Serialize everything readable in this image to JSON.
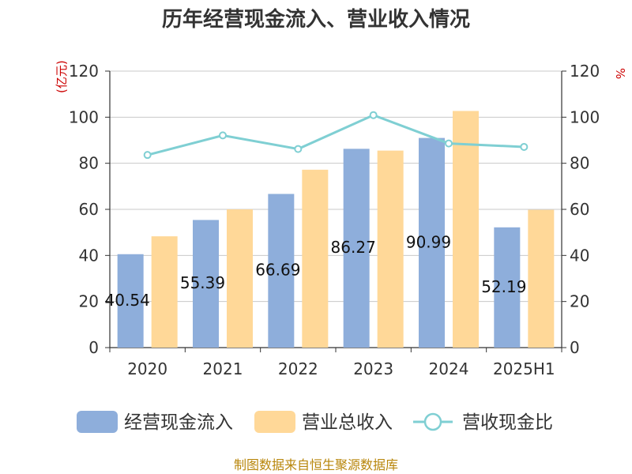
{
  "chart_data": {
    "type": "bar",
    "title": "历年经营现金流入、营业收入情况",
    "categories": [
      "2020",
      "2021",
      "2022",
      "2023",
      "2024",
      "2025H1"
    ],
    "series": [
      {
        "name": "经营现金流入",
        "type": "bar",
        "axis": "left",
        "values": [
          40.54,
          55.39,
          66.69,
          86.27,
          90.99,
          52.19
        ],
        "labels": [
          "40.54",
          "55.39",
          "66.69",
          "86.27",
          "90.99",
          "52.19"
        ],
        "color": "#8eaedb"
      },
      {
        "name": "营业总收入",
        "type": "bar",
        "axis": "left",
        "values": [
          48.3,
          60.0,
          77.2,
          85.5,
          102.7,
          59.8
        ],
        "color": "#ffd898"
      },
      {
        "name": "营收现金比",
        "type": "line",
        "axis": "right",
        "values": [
          83.6,
          92.1,
          86.2,
          100.9,
          88.6,
          87.1
        ],
        "color": "#7fcfd3"
      }
    ],
    "yleft": {
      "unit": "(亿元)",
      "ylim": [
        0,
        120
      ],
      "ticks": [
        "0",
        "20",
        "40",
        "60",
        "80",
        "100",
        "120"
      ]
    },
    "yright": {
      "unit": "%",
      "ylim": [
        0,
        120
      ],
      "ticks": [
        "0",
        "20",
        "40",
        "60",
        "80",
        "100",
        "120"
      ]
    },
    "grid": true,
    "legend": "bottom",
    "source": "制图数据来自恒生聚源数据库"
  }
}
